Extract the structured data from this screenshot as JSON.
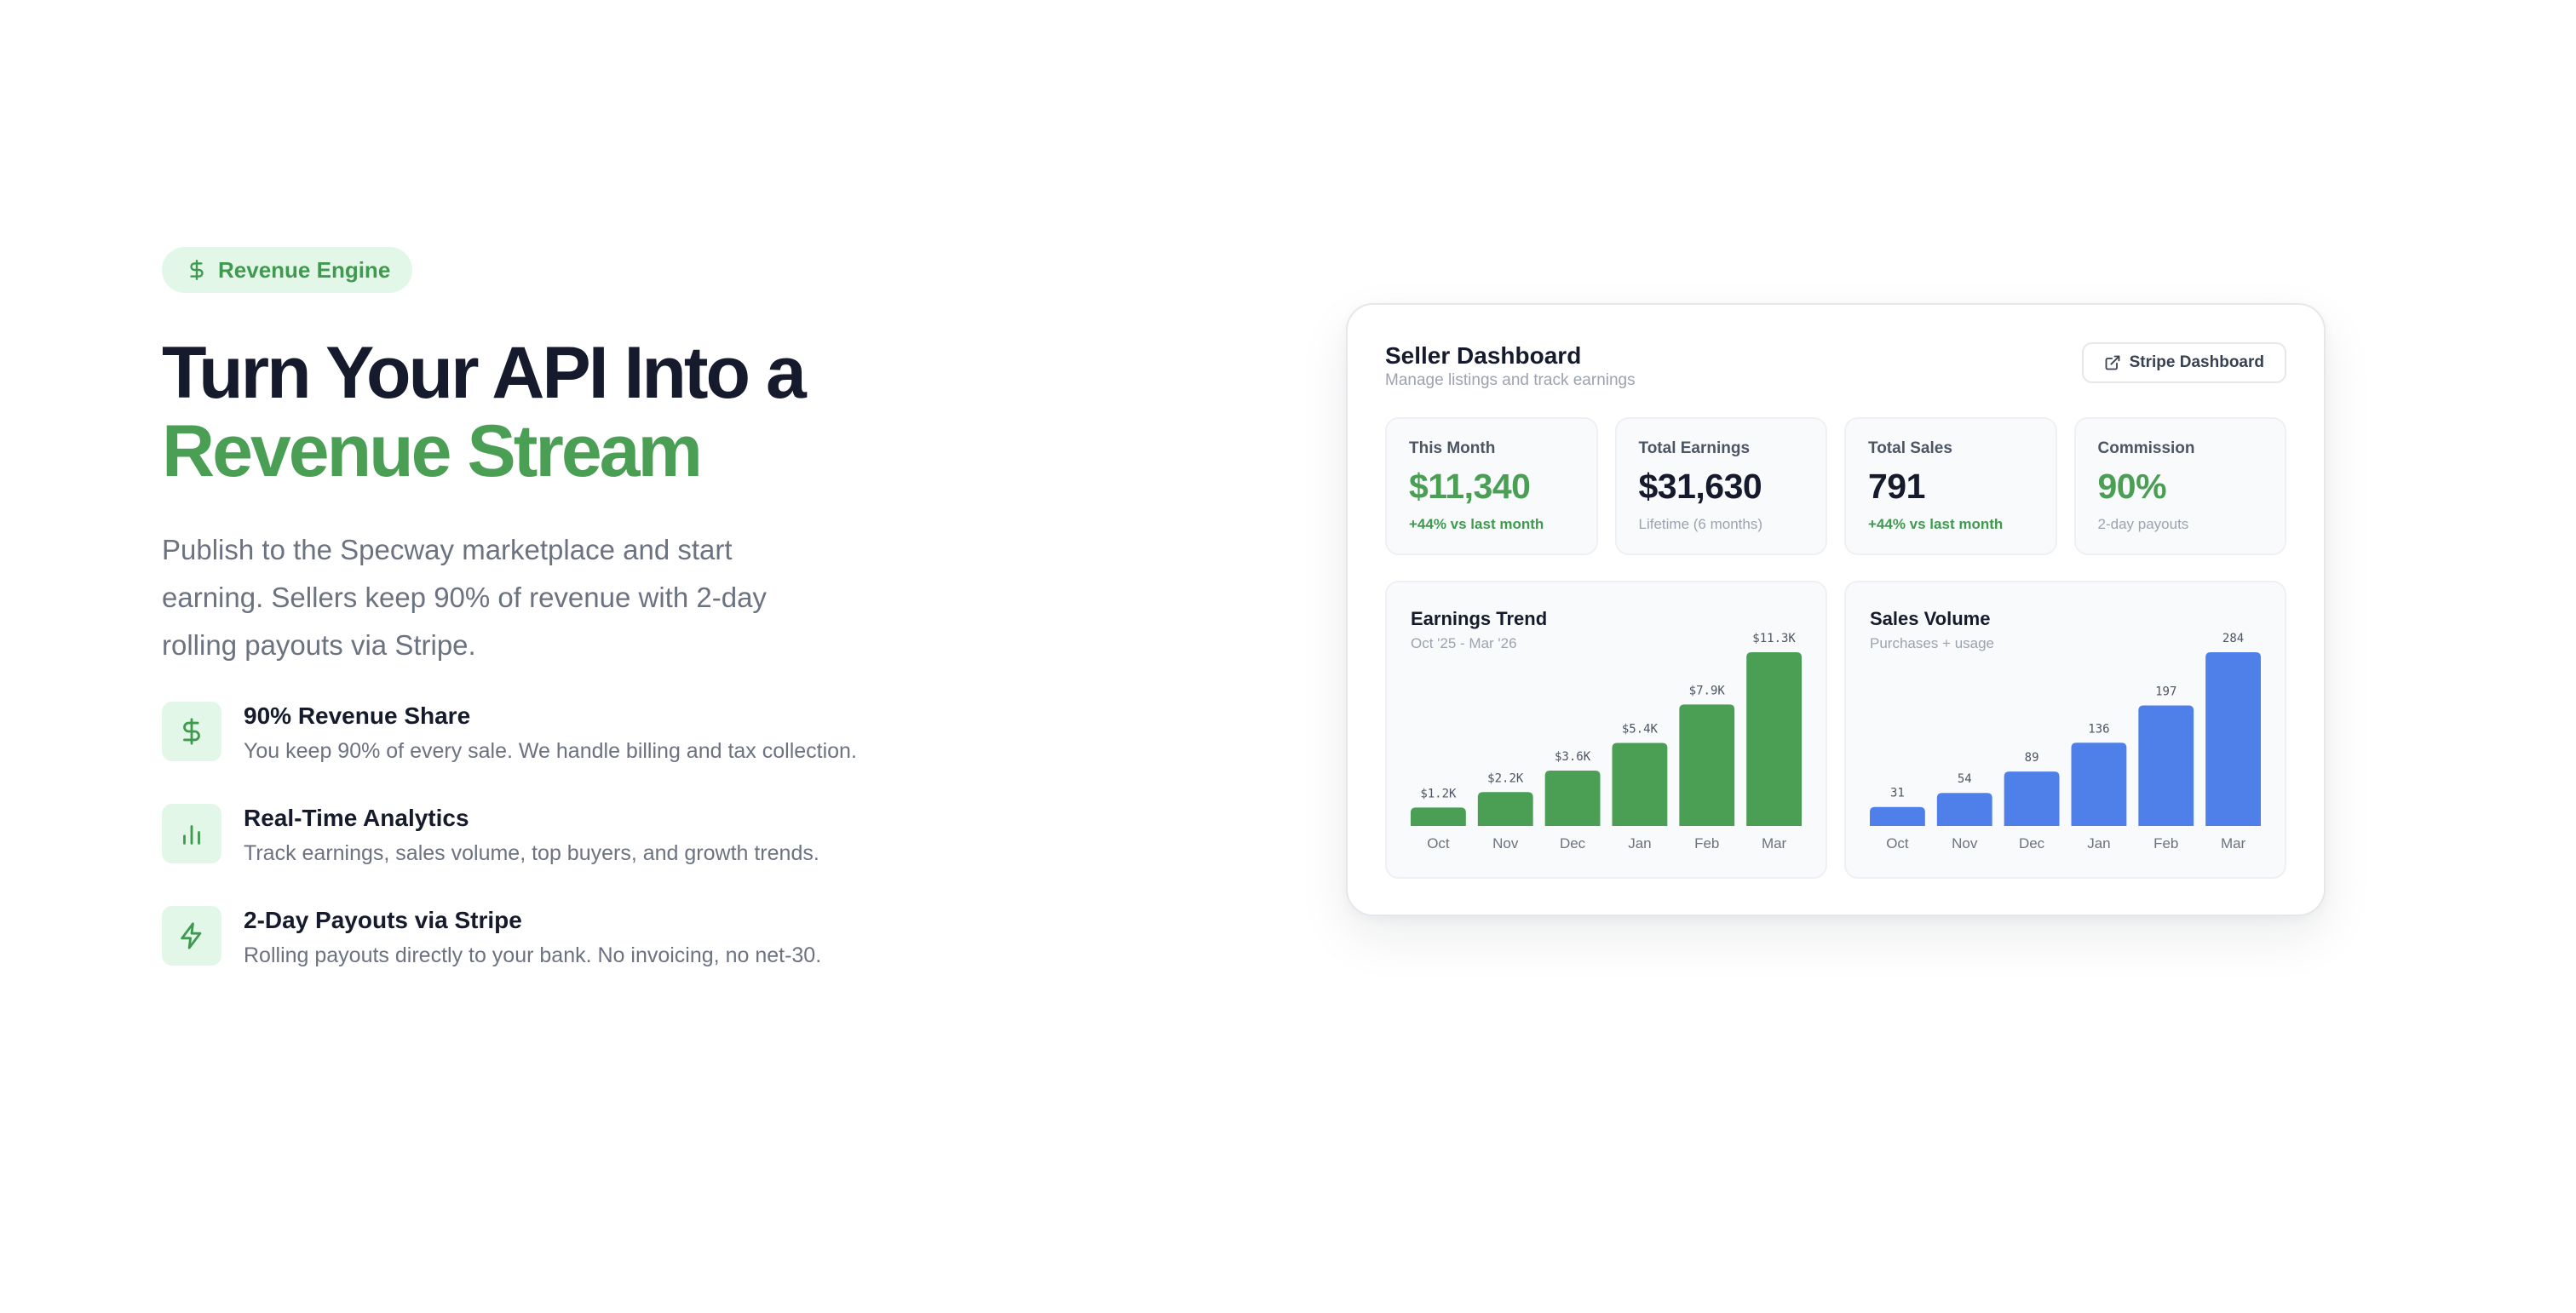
{
  "hero": {
    "badge": "Revenue Engine",
    "title_line1": "Turn Your API Into a",
    "title_line2": "Revenue Stream",
    "description": "Publish to the Specway marketplace and start earning. Sellers keep 90% of revenue with 2-day rolling payouts via Stripe."
  },
  "features": [
    {
      "icon": "dollar-icon",
      "title": "90% Revenue Share",
      "description": "You keep 90% of every sale. We handle billing and tax collection."
    },
    {
      "icon": "bar-chart-icon",
      "title": "Real-Time Analytics",
      "description": "Track earnings, sales volume, top buyers, and growth trends."
    },
    {
      "icon": "lightning-icon",
      "title": "2-Day Payouts via Stripe",
      "description": "Rolling payouts directly to your bank. No invoicing, no net-30."
    }
  ],
  "dashboard": {
    "title": "Seller Dashboard",
    "subtitle": "Manage listings and track earnings",
    "stripe_button": "Stripe Dashboard",
    "stats": [
      {
        "label": "This Month",
        "value": "$11,340",
        "foot": "+44% vs last month"
      },
      {
        "label": "Total Earnings",
        "value": "$31,630",
        "foot": "Lifetime (6 months)"
      },
      {
        "label": "Total Sales",
        "value": "791",
        "foot": "+44% vs last month"
      },
      {
        "label": "Commission",
        "value": "90%",
        "foot": "2-day payouts"
      }
    ]
  },
  "colors": {
    "accent_green": "#4a9f55",
    "accent_blue": "#4f7fe8",
    "badge_bg": "#e3f7e8"
  },
  "chart_data": [
    {
      "type": "bar",
      "title": "Earnings Trend",
      "subtitle": "Oct '25 - Mar '26",
      "categories": [
        "Oct",
        "Nov",
        "Dec",
        "Jan",
        "Feb",
        "Mar"
      ],
      "values": [
        1200,
        2200,
        3600,
        5400,
        7900,
        11300
      ],
      "value_labels": [
        "$1.2K",
        "$2.2K",
        "$3.6K",
        "$5.4K",
        "$7.9K",
        "$11.3K"
      ],
      "color": "#4a9f55"
    },
    {
      "type": "bar",
      "title": "Sales Volume",
      "subtitle": "Purchases + usage",
      "categories": [
        "Oct",
        "Nov",
        "Dec",
        "Jan",
        "Feb",
        "Mar"
      ],
      "values": [
        31,
        54,
        89,
        136,
        197,
        284
      ],
      "value_labels": [
        "31",
        "54",
        "89",
        "136",
        "197",
        "284"
      ],
      "color": "#4f7fe8"
    }
  ]
}
